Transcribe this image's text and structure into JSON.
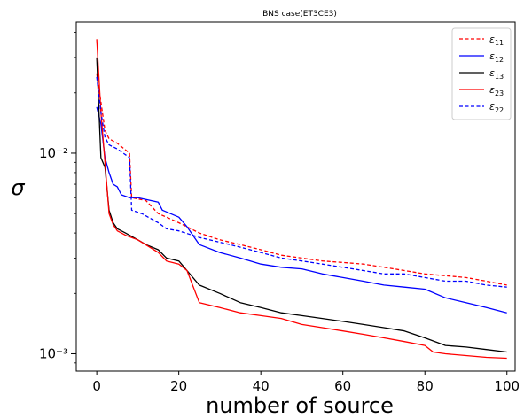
{
  "chart_data": {
    "type": "line",
    "title": "BNS case(ET3CE3)",
    "xlabel": "number of source",
    "ylabel": "σ",
    "yscale": "log",
    "xlim": [
      -5,
      102
    ],
    "ylim": [
      0.00082,
      0.045
    ],
    "x_ticks": [
      0,
      20,
      40,
      60,
      80,
      100
    ],
    "x_tick_labels": [
      "0",
      "20",
      "40",
      "60",
      "80",
      "100"
    ],
    "y_ticks": [
      0.001,
      0.01
    ],
    "y_tick_labels": [
      "10⁻³",
      "10⁻²"
    ],
    "grid": false,
    "legend_position": "top-right",
    "series": [
      {
        "name": "ε₁₁",
        "legend_main": "ε",
        "legend_sub": "11",
        "color": "#ff0000",
        "dashed": true,
        "points": [
          [
            0,
            0.025
          ],
          [
            1,
            0.018
          ],
          [
            2,
            0.013
          ],
          [
            3,
            0.0118
          ],
          [
            5,
            0.0112
          ],
          [
            8,
            0.01
          ],
          [
            8.5,
            0.006
          ],
          [
            12,
            0.0058
          ],
          [
            15,
            0.005
          ],
          [
            17,
            0.0048
          ],
          [
            20,
            0.0045
          ],
          [
            25,
            0.004
          ],
          [
            30,
            0.0037
          ],
          [
            35,
            0.0035
          ],
          [
            40,
            0.0033
          ],
          [
            45,
            0.0031
          ],
          [
            50,
            0.003
          ],
          [
            55,
            0.0029
          ],
          [
            60,
            0.00285
          ],
          [
            65,
            0.0028
          ],
          [
            70,
            0.0027
          ],
          [
            75,
            0.0026
          ],
          [
            80,
            0.0025
          ],
          [
            85,
            0.00245
          ],
          [
            90,
            0.0024
          ],
          [
            95,
            0.0023
          ],
          [
            100,
            0.0022
          ]
        ]
      },
      {
        "name": "ε₁₂",
        "legend_main": "ε",
        "legend_sub": "12",
        "color": "#0000ff",
        "dashed": false,
        "points": [
          [
            0,
            0.017
          ],
          [
            1,
            0.014
          ],
          [
            2,
            0.0095
          ],
          [
            3,
            0.008
          ],
          [
            4,
            0.007
          ],
          [
            5,
            0.0068
          ],
          [
            6,
            0.0062
          ],
          [
            8,
            0.006
          ],
          [
            10,
            0.006
          ],
          [
            15,
            0.0057
          ],
          [
            16,
            0.0052
          ],
          [
            20,
            0.0048
          ],
          [
            22,
            0.0043
          ],
          [
            25,
            0.0035
          ],
          [
            30,
            0.0032
          ],
          [
            35,
            0.003
          ],
          [
            40,
            0.0028
          ],
          [
            45,
            0.0027
          ],
          [
            50,
            0.00265
          ],
          [
            55,
            0.0025
          ],
          [
            60,
            0.0024
          ],
          [
            65,
            0.0023
          ],
          [
            70,
            0.0022
          ],
          [
            75,
            0.00215
          ],
          [
            80,
            0.0021
          ],
          [
            85,
            0.0019
          ],
          [
            90,
            0.0018
          ],
          [
            95,
            0.0017
          ],
          [
            100,
            0.0016
          ]
        ]
      },
      {
        "name": "ε₁₃",
        "legend_main": "ε",
        "legend_sub": "13",
        "color": "#000000",
        "dashed": false,
        "points": [
          [
            0,
            0.03
          ],
          [
            1,
            0.0095
          ],
          [
            2,
            0.0085
          ],
          [
            3,
            0.0052
          ],
          [
            4,
            0.0045
          ],
          [
            5,
            0.0042
          ],
          [
            7,
            0.004
          ],
          [
            10,
            0.0037
          ],
          [
            12,
            0.0035
          ],
          [
            15,
            0.0033
          ],
          [
            17,
            0.003
          ],
          [
            20,
            0.0029
          ],
          [
            22,
            0.0026
          ],
          [
            25,
            0.0022
          ],
          [
            30,
            0.002
          ],
          [
            35,
            0.0018
          ],
          [
            40,
            0.0017
          ],
          [
            45,
            0.0016
          ],
          [
            50,
            0.00155
          ],
          [
            55,
            0.0015
          ],
          [
            60,
            0.00145
          ],
          [
            65,
            0.0014
          ],
          [
            70,
            0.00135
          ],
          [
            75,
            0.0013
          ],
          [
            80,
            0.0012
          ],
          [
            85,
            0.0011
          ],
          [
            90,
            0.00108
          ],
          [
            95,
            0.00105
          ],
          [
            100,
            0.00102
          ]
        ]
      },
      {
        "name": "ε₂₃",
        "legend_main": "ε",
        "legend_sub": "23",
        "color": "#ff0000",
        "dashed": false,
        "points": [
          [
            0,
            0.037
          ],
          [
            1,
            0.016
          ],
          [
            2,
            0.009
          ],
          [
            3,
            0.005
          ],
          [
            4,
            0.0044
          ],
          [
            5,
            0.0041
          ],
          [
            7,
            0.0039
          ],
          [
            10,
            0.0037
          ],
          [
            15,
            0.0032
          ],
          [
            17,
            0.0029
          ],
          [
            20,
            0.0028
          ],
          [
            22,
            0.0026
          ],
          [
            25,
            0.0018
          ],
          [
            30,
            0.0017
          ],
          [
            35,
            0.0016
          ],
          [
            40,
            0.00155
          ],
          [
            45,
            0.0015
          ],
          [
            50,
            0.0014
          ],
          [
            55,
            0.00135
          ],
          [
            60,
            0.0013
          ],
          [
            65,
            0.00125
          ],
          [
            70,
            0.0012
          ],
          [
            75,
            0.00115
          ],
          [
            80,
            0.0011
          ],
          [
            82,
            0.00102
          ],
          [
            85,
            0.001
          ],
          [
            90,
            0.00098
          ],
          [
            95,
            0.00096
          ],
          [
            100,
            0.00095
          ]
        ]
      },
      {
        "name": "ε₂₂",
        "legend_main": "ε",
        "legend_sub": "22",
        "color": "#0000ff",
        "dashed": true,
        "points": [
          [
            0,
            0.024
          ],
          [
            1,
            0.016
          ],
          [
            2,
            0.012
          ],
          [
            3,
            0.011
          ],
          [
            5,
            0.0105
          ],
          [
            8,
            0.0095
          ],
          [
            8.5,
            0.0052
          ],
          [
            11,
            0.005
          ],
          [
            15,
            0.0045
          ],
          [
            17,
            0.0042
          ],
          [
            20,
            0.0041
          ],
          [
            25,
            0.0038
          ],
          [
            30,
            0.0036
          ],
          [
            35,
            0.0034
          ],
          [
            40,
            0.0032
          ],
          [
            45,
            0.003
          ],
          [
            50,
            0.0029
          ],
          [
            55,
            0.0028
          ],
          [
            60,
            0.0027
          ],
          [
            65,
            0.0026
          ],
          [
            70,
            0.0025
          ],
          [
            75,
            0.0025
          ],
          [
            80,
            0.0024
          ],
          [
            85,
            0.0023
          ],
          [
            90,
            0.0023
          ],
          [
            95,
            0.0022
          ],
          [
            100,
            0.00215
          ]
        ]
      }
    ]
  }
}
